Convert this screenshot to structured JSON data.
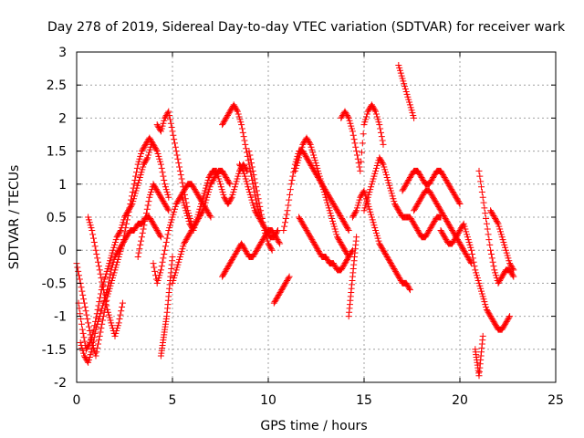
{
  "chart_data": {
    "type": "scatter",
    "title": "Day 278 of 2019, Sidereal Day-to-day VTEC variation (SDTVAR) for receiver wark",
    "xlabel": "GPS time / hours",
    "ylabel": "SDTVAR / TECUs",
    "xlim": [
      0,
      25
    ],
    "ylim": [
      -2,
      3
    ],
    "xticks": [
      "0",
      "5",
      "10",
      "15",
      "20",
      "25"
    ],
    "yticks": [
      "-2",
      "-1.5",
      "-1",
      "-0.5",
      "0",
      "0.5",
      "1",
      "1.5",
      "2",
      "2.5",
      "3"
    ],
    "grid": true,
    "marker": "plus",
    "color": "#ff0000",
    "series": [
      {
        "name": "s1",
        "x": [
          0.0,
          0.2,
          0.4,
          0.6,
          0.8,
          1.0,
          1.2,
          1.4,
          1.6,
          1.8,
          2.0,
          2.2,
          2.4,
          2.6,
          2.8,
          3.0,
          3.2,
          3.4,
          3.6,
          3.8,
          4.0,
          4.2,
          4.4,
          4.6,
          4.8
        ],
        "y": [
          -0.2,
          -0.5,
          -0.8,
          -1.1,
          -1.4,
          -1.6,
          -1.3,
          -1.0,
          -0.7,
          -0.5,
          -0.3,
          -0.1,
          0.1,
          0.4,
          0.7,
          1.0,
          1.3,
          1.5,
          1.6,
          1.7,
          1.6,
          1.5,
          1.3,
          1.0,
          0.8
        ]
      },
      {
        "name": "s2",
        "x": [
          0.1,
          0.3,
          0.5,
          0.7,
          0.9,
          1.1,
          1.3,
          1.5,
          1.7,
          1.9,
          2.1,
          2.3,
          2.5,
          2.7,
          2.9,
          3.1,
          3.3,
          3.5,
          3.7,
          3.9
        ],
        "y": [
          -0.8,
          -1.2,
          -1.5,
          -1.4,
          -1.2,
          -0.9,
          -0.6,
          -0.4,
          -0.2,
          0.0,
          0.2,
          0.3,
          0.5,
          0.6,
          0.7,
          0.9,
          1.1,
          1.3,
          1.4,
          1.6
        ]
      },
      {
        "name": "s3",
        "x": [
          0.2,
          0.4,
          0.6,
          0.8,
          1.0,
          1.2,
          1.4,
          1.6,
          1.8,
          2.0,
          2.2,
          2.4,
          2.6,
          2.8,
          3.0,
          3.2,
          3.4,
          3.6,
          3.8,
          4.0,
          4.2,
          4.4
        ],
        "y": [
          -1.4,
          -1.6,
          -1.7,
          -1.5,
          -1.2,
          -1.0,
          -0.8,
          -0.6,
          -0.3,
          -0.1,
          0.0,
          0.1,
          0.2,
          0.3,
          0.3,
          0.4,
          0.4,
          0.5,
          0.5,
          0.4,
          0.3,
          0.2
        ]
      },
      {
        "name": "s4",
        "x": [
          0.6,
          0.8,
          1.0,
          1.2,
          1.4,
          1.6,
          1.8,
          2.0,
          2.2,
          2.4
        ],
        "y": [
          0.5,
          0.3,
          0.0,
          -0.3,
          -0.6,
          -0.9,
          -1.1,
          -1.3,
          -1.1,
          -0.8
        ]
      },
      {
        "name": "s5",
        "x": [
          3.2,
          3.4,
          3.6,
          3.8,
          4.0,
          4.2,
          4.4,
          4.6,
          4.8
        ],
        "y": [
          -0.1,
          0.2,
          0.5,
          0.8,
          1.0,
          0.9,
          0.8,
          0.7,
          0.6
        ]
      },
      {
        "name": "s6",
        "x": [
          4.0,
          4.2,
          4.4,
          4.6,
          4.8,
          5.0,
          5.2,
          5.4,
          5.6,
          5.8,
          6.0,
          6.2,
          6.4,
          6.6,
          6.8,
          7.0
        ],
        "y": [
          -0.2,
          -0.5,
          -0.3,
          0.0,
          0.3,
          0.5,
          0.7,
          0.8,
          0.9,
          1.0,
          1.0,
          0.9,
          0.8,
          0.7,
          0.6,
          0.5
        ]
      },
      {
        "name": "s7",
        "x": [
          4.2,
          4.4,
          4.6,
          4.8,
          5.0,
          5.2,
          5.4,
          5.6,
          5.8,
          6.0
        ],
        "y": [
          1.9,
          1.8,
          2.0,
          2.1,
          1.8,
          1.5,
          1.2,
          0.9,
          0.6,
          0.4
        ]
      },
      {
        "name": "s8",
        "x": [
          4.4,
          4.5,
          4.6,
          4.7,
          4.8,
          4.9,
          5.0
        ],
        "y": [
          -1.6,
          -1.4,
          -1.2,
          -1.0,
          -0.7,
          -0.4,
          -0.1
        ]
      },
      {
        "name": "s9",
        "x": [
          5.0,
          5.2,
          5.4,
          5.6,
          5.8,
          6.0,
          6.2,
          6.4,
          6.6,
          6.8,
          7.0,
          7.2,
          7.4,
          7.6,
          7.8,
          8.0
        ],
        "y": [
          -0.5,
          -0.3,
          -0.1,
          0.1,
          0.2,
          0.3,
          0.4,
          0.5,
          0.6,
          0.8,
          1.0,
          1.1,
          1.2,
          1.2,
          1.1,
          1.0
        ]
      },
      {
        "name": "s10",
        "x": [
          5.5,
          5.7,
          5.9,
          6.1,
          6.3,
          6.5,
          6.7,
          6.9,
          7.1,
          7.3,
          7.5,
          7.7,
          7.9,
          8.1,
          8.3,
          8.5,
          8.7,
          8.9
        ],
        "y": [
          0.8,
          0.6,
          0.4,
          0.3,
          0.5,
          0.7,
          0.9,
          1.1,
          1.2,
          1.2,
          1.0,
          0.8,
          0.7,
          0.8,
          1.0,
          1.2,
          1.3,
          1.2
        ]
      },
      {
        "name": "s11",
        "x": [
          7.6,
          7.8,
          8.0,
          8.2,
          8.4,
          8.6,
          8.8,
          9.0,
          9.2,
          9.4,
          9.6
        ],
        "y": [
          1.9,
          2.0,
          2.1,
          2.2,
          2.1,
          1.9,
          1.6,
          1.3,
          1.0,
          0.7,
          0.5
        ]
      },
      {
        "name": "s12",
        "x": [
          7.6,
          7.8,
          8.0,
          8.2,
          8.4,
          8.6,
          8.8,
          9.0,
          9.2,
          9.4,
          9.6,
          9.8,
          10.0,
          10.2,
          10.4,
          10.6
        ],
        "y": [
          -0.4,
          -0.3,
          -0.2,
          -0.1,
          0.0,
          0.1,
          0.0,
          -0.1,
          -0.1,
          0.0,
          0.1,
          0.2,
          0.3,
          0.3,
          0.2,
          0.1
        ]
      },
      {
        "name": "s13",
        "x": [
          8.5,
          8.7,
          8.9,
          9.1,
          9.3,
          9.5,
          9.7,
          9.9,
          10.1,
          10.3,
          10.5
        ],
        "y": [
          1.3,
          1.2,
          1.0,
          0.8,
          0.6,
          0.5,
          0.4,
          0.3,
          0.2,
          0.2,
          0.3
        ]
      },
      {
        "name": "s14",
        "x": [
          9.0,
          9.2,
          9.4,
          9.6,
          9.8,
          10.0,
          10.2
        ],
        "y": [
          1.5,
          1.2,
          0.9,
          0.6,
          0.3,
          0.1,
          0.0
        ]
      },
      {
        "name": "s15",
        "x": [
          10.3,
          10.5,
          10.7,
          10.9,
          11.1
        ],
        "y": [
          -0.8,
          -0.7,
          -0.6,
          -0.5,
          -0.4
        ]
      },
      {
        "name": "s16",
        "x": [
          10.8,
          11.0,
          11.2,
          11.4,
          11.6,
          11.8,
          12.0,
          12.2,
          12.4,
          12.6,
          12.8,
          13.0,
          13.2,
          13.4,
          13.6,
          13.8,
          14.0,
          14.2
        ],
        "y": [
          0.3,
          0.6,
          1.0,
          1.3,
          1.5,
          1.5,
          1.4,
          1.3,
          1.2,
          1.1,
          1.0,
          0.9,
          0.8,
          0.7,
          0.6,
          0.5,
          0.4,
          0.3
        ]
      },
      {
        "name": "s17",
        "x": [
          11.4,
          11.6,
          11.8,
          12.0,
          12.2,
          12.4,
          12.6,
          12.8,
          13.0,
          13.2,
          13.4,
          13.6,
          13.8,
          14.0,
          14.2
        ],
        "y": [
          1.2,
          1.4,
          1.6,
          1.7,
          1.6,
          1.4,
          1.2,
          1.0,
          0.8,
          0.6,
          0.4,
          0.2,
          0.1,
          0.0,
          -0.1
        ]
      },
      {
        "name": "s18",
        "x": [
          11.6,
          11.8,
          12.0,
          12.2,
          12.4,
          12.6,
          12.8,
          13.0,
          13.2,
          13.4,
          13.6,
          13.8,
          14.0,
          14.2,
          14.4
        ],
        "y": [
          0.5,
          0.4,
          0.3,
          0.2,
          0.1,
          0.0,
          -0.1,
          -0.1,
          -0.2,
          -0.2,
          -0.3,
          -0.3,
          -0.2,
          -0.1,
          0.0
        ]
      },
      {
        "name": "s19",
        "x": [
          13.8,
          14.0,
          14.2,
          14.4,
          14.6,
          14.8,
          15.0,
          15.2,
          15.4,
          15.6,
          15.8,
          16.0
        ],
        "y": [
          2.0,
          2.1,
          2.0,
          1.8,
          1.5,
          1.2,
          1.9,
          2.1,
          2.2,
          2.1,
          1.9,
          1.6
        ]
      },
      {
        "name": "s20",
        "x": [
          14.4,
          14.6,
          14.8,
          15.0,
          15.2,
          15.4,
          15.6,
          15.8,
          16.0,
          16.2,
          16.4,
          16.6,
          16.8,
          17.0,
          17.2,
          17.4
        ],
        "y": [
          0.5,
          0.6,
          0.8,
          0.9,
          0.7,
          0.5,
          0.3,
          0.1,
          0.0,
          -0.1,
          -0.2,
          -0.3,
          -0.4,
          -0.5,
          -0.5,
          -0.6
        ]
      },
      {
        "name": "s21",
        "x": [
          14.2,
          14.3,
          14.4,
          14.5,
          14.6
        ],
        "y": [
          -1.0,
          -0.7,
          -0.4,
          -0.1,
          0.2
        ]
      },
      {
        "name": "s22",
        "x": [
          15.0,
          15.2,
          15.4,
          15.6,
          15.8,
          16.0,
          16.2,
          16.4,
          16.6,
          16.8,
          17.0,
          17.2,
          17.4,
          17.6,
          17.8,
          18.0,
          18.2,
          18.4,
          18.6,
          18.8,
          19.0
        ],
        "y": [
          0.6,
          0.8,
          1.0,
          1.2,
          1.4,
          1.3,
          1.1,
          0.9,
          0.7,
          0.6,
          0.5,
          0.5,
          0.5,
          0.4,
          0.3,
          0.2,
          0.2,
          0.3,
          0.4,
          0.5,
          0.5
        ]
      },
      {
        "name": "s23",
        "x": [
          16.8,
          17.0,
          17.2,
          17.4,
          17.6
        ],
        "y": [
          2.8,
          2.6,
          2.4,
          2.2,
          2.0
        ]
      },
      {
        "name": "s24",
        "x": [
          17.0,
          17.2,
          17.4,
          17.6,
          17.8,
          18.0,
          18.2,
          18.4,
          18.6,
          18.8,
          19.0,
          19.2,
          19.4,
          19.6,
          19.8,
          20.0
        ],
        "y": [
          0.9,
          1.0,
          1.1,
          1.2,
          1.2,
          1.1,
          1.0,
          1.0,
          1.1,
          1.2,
          1.2,
          1.1,
          1.0,
          0.9,
          0.8,
          0.7
        ]
      },
      {
        "name": "s25",
        "x": [
          17.6,
          17.8,
          18.0,
          18.2,
          18.4,
          18.6,
          18.8,
          19.0,
          19.2,
          19.4,
          19.6,
          19.8,
          20.0,
          20.2,
          20.4,
          20.6
        ],
        "y": [
          0.6,
          0.7,
          0.8,
          0.9,
          0.9,
          0.8,
          0.7,
          0.6,
          0.5,
          0.4,
          0.3,
          0.2,
          0.1,
          0.0,
          -0.1,
          -0.2
        ]
      },
      {
        "name": "s26",
        "x": [
          19.0,
          19.2,
          19.4,
          19.6,
          19.8,
          20.0,
          20.2,
          20.4,
          20.6,
          20.8,
          21.0,
          21.2,
          21.4,
          21.6,
          21.8,
          22.0,
          22.2,
          22.4,
          22.6
        ],
        "y": [
          0.3,
          0.2,
          0.1,
          0.1,
          0.2,
          0.3,
          0.4,
          0.2,
          0.0,
          -0.3,
          -0.5,
          -0.7,
          -0.9,
          -1.0,
          -1.1,
          -1.2,
          -1.2,
          -1.1,
          -1.0
        ]
      },
      {
        "name": "s27",
        "x": [
          20.8,
          20.9,
          21.0,
          21.1,
          21.2
        ],
        "y": [
          -1.5,
          -1.7,
          -1.9,
          -1.6,
          -1.3
        ]
      },
      {
        "name": "s28",
        "x": [
          21.0,
          21.2,
          21.4,
          21.6,
          21.8,
          22.0,
          22.2,
          22.4,
          22.6,
          22.8
        ],
        "y": [
          1.2,
          0.8,
          0.4,
          0.0,
          -0.3,
          -0.5,
          -0.4,
          -0.3,
          -0.3,
          -0.4
        ]
      },
      {
        "name": "s29",
        "x": [
          21.6,
          21.8,
          22.0,
          22.2,
          22.4,
          22.6,
          22.8
        ],
        "y": [
          0.6,
          0.5,
          0.4,
          0.2,
          0.0,
          -0.2,
          -0.3
        ]
      }
    ]
  }
}
